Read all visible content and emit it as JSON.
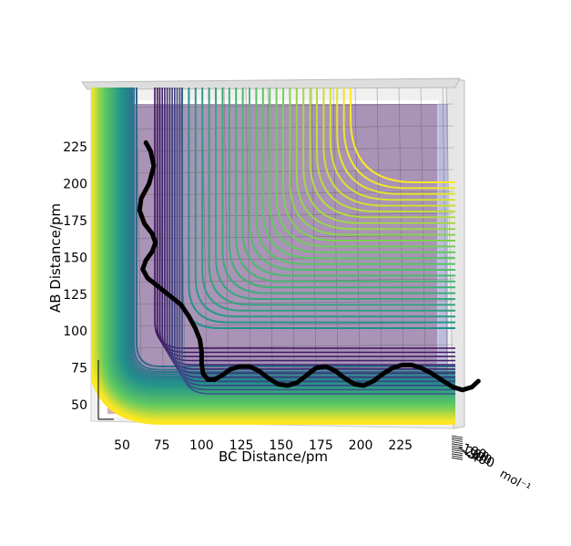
{
  "chart_data": {
    "type": "surface-contour-3d",
    "xlabel": "BC Distance/pm",
    "ylabel": "AB Distance/pm",
    "zlabel": "mol⁻¹",
    "x_ticks": [
      50,
      75,
      100,
      125,
      150,
      175,
      200,
      225
    ],
    "y_ticks": [
      50,
      75,
      100,
      125,
      150,
      175,
      200,
      225
    ],
    "z_ticks": [
      "-100",
      "-200",
      "-300",
      "-400"
    ],
    "xlim": [
      35,
      260
    ],
    "ylim": [
      35,
      265
    ],
    "colormap": [
      "#440154",
      "#3b528b",
      "#21918c",
      "#5ec962",
      "#fde725"
    ],
    "contour_levels": 38,
    "trajectory": {
      "color": "#000000",
      "points": [
        [
          65,
          228
        ],
        [
          68,
          222
        ],
        [
          70,
          212
        ],
        [
          67,
          200
        ],
        [
          62,
          190
        ],
        [
          61,
          182
        ],
        [
          64,
          173
        ],
        [
          69,
          166
        ],
        [
          71,
          160
        ],
        [
          69,
          154
        ],
        [
          65,
          148
        ],
        [
          63,
          142
        ],
        [
          66,
          136
        ],
        [
          73,
          130
        ],
        [
          80,
          124
        ],
        [
          87,
          118
        ],
        [
          92,
          110
        ],
        [
          96,
          102
        ],
        [
          99,
          94
        ],
        [
          100,
          86
        ],
        [
          100,
          78
        ],
        [
          101,
          71
        ],
        [
          104,
          67
        ],
        [
          108,
          67
        ],
        [
          113,
          70
        ],
        [
          118,
          74
        ],
        [
          124,
          76
        ],
        [
          130,
          76
        ],
        [
          136,
          73
        ],
        [
          142,
          68
        ],
        [
          148,
          64
        ],
        [
          154,
          63
        ],
        [
          160,
          65
        ],
        [
          166,
          70
        ],
        [
          172,
          75
        ],
        [
          178,
          76
        ],
        [
          184,
          73
        ],
        [
          190,
          68
        ],
        [
          196,
          64
        ],
        [
          202,
          63
        ],
        [
          208,
          66
        ],
        [
          214,
          71
        ],
        [
          220,
          75
        ],
        [
          226,
          77
        ],
        [
          232,
          77
        ],
        [
          238,
          75
        ],
        [
          245,
          71
        ],
        [
          252,
          66
        ],
        [
          258,
          62
        ],
        [
          264,
          60
        ],
        [
          270,
          62
        ],
        [
          274,
          66
        ]
      ]
    }
  }
}
